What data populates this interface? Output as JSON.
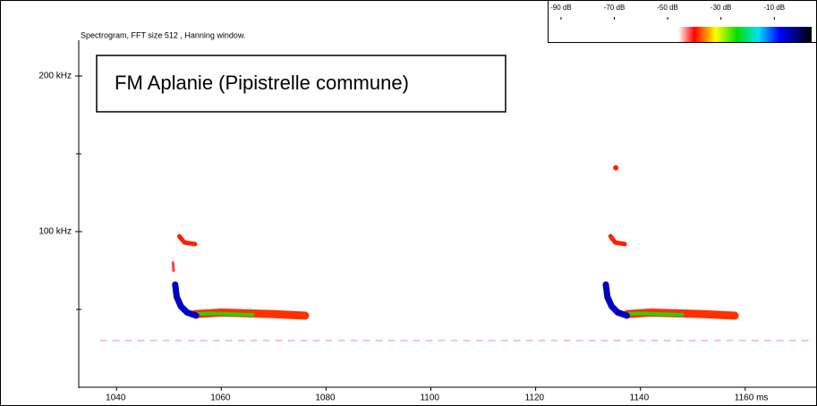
{
  "chart_data": {
    "type": "spectrogram",
    "title": "Spectrogram, FFT size 512 , Hanning window.",
    "annotation": "FM Aplanie (Pipistrelle commune)",
    "xlim": [
      1032.8,
      1173.7
    ],
    "xticks": [
      1040,
      1060,
      1080,
      1100,
      1120,
      1140,
      {
        "value": 1160,
        "label": "1160 ms"
      }
    ],
    "ylim": [
      0,
      223
    ],
    "yticks": [
      {
        "value": 100,
        "label": "100 kHz"
      },
      {
        "value": 200,
        "label": "200 kHz"
      }
    ],
    "minor_yticks": [
      50,
      150
    ],
    "clim": [
      -95,
      6
    ],
    "cticks": [
      {
        "value": -90,
        "label": "-90 dB"
      },
      {
        "value": -70,
        "label": "-70 dB"
      },
      {
        "value": -50,
        "label": "-50 dB"
      },
      {
        "value": -30,
        "label": "-30 dB"
      },
      {
        "value": -10,
        "label": "-10 dB"
      }
    ],
    "colorscale": [
      {
        "value": -46,
        "color": "#ffffff"
      },
      {
        "value": -40,
        "color": "#ff0000"
      },
      {
        "value": -32,
        "color": "#ffff00"
      },
      {
        "value": -24,
        "color": "#00e000"
      },
      {
        "value": -16,
        "color": "#00e0ff"
      },
      {
        "value": -8,
        "color": "#0000ff"
      },
      {
        "value": 4,
        "color": "#000000"
      }
    ],
    "series": [
      {
        "color": "#ffc0c0",
        "x": [
          1037,
          1172
        ],
        "values": [
          30,
          30
        ]
      },
      {
        "color": "#ff3000",
        "x": [
          1055,
          1060,
          1065,
          1070,
          1076
        ],
        "values": [
          47,
          48,
          47.5,
          47,
          46
        ]
      },
      {
        "color": "#30d000",
        "x": [
          1055,
          1058,
          1062,
          1066
        ],
        "values": [
          47,
          47.5,
          47,
          46.5
        ]
      },
      {
        "color": "#ff2000",
        "x": [
          1052,
          1053,
          1055
        ],
        "values": [
          97,
          93,
          92
        ]
      },
      {
        "color": "#ff4040",
        "x": [
          1050.8,
          1050.9
        ],
        "values": [
          80,
          75
        ]
      },
      {
        "color": "#0000c0",
        "x": [
          1051.2,
          1051.5,
          1052.3,
          1053.5,
          1055.2
        ],
        "values": [
          66,
          58,
          52,
          48,
          46
        ]
      },
      {
        "color": "#ff3000",
        "x": [
          1137.5,
          1142,
          1147,
          1152,
          1158
        ],
        "values": [
          47,
          48,
          47.5,
          47,
          46
        ]
      },
      {
        "color": "#30d000",
        "x": [
          1137.5,
          1140,
          1144,
          1148
        ],
        "values": [
          47,
          47.5,
          47,
          46.5
        ]
      },
      {
        "color": "#ff2000",
        "x": [
          1134.3,
          1135.2,
          1137
        ],
        "values": [
          97,
          93,
          92
        ]
      },
      {
        "color": "#0000c0",
        "x": [
          1133.4,
          1133.7,
          1134.5,
          1135.7,
          1137.4
        ],
        "values": [
          66,
          58,
          52,
          48,
          46
        ]
      },
      {
        "color": "#ff2000",
        "x": [
          1135.3
        ],
        "values": [
          141
        ]
      }
    ]
  }
}
